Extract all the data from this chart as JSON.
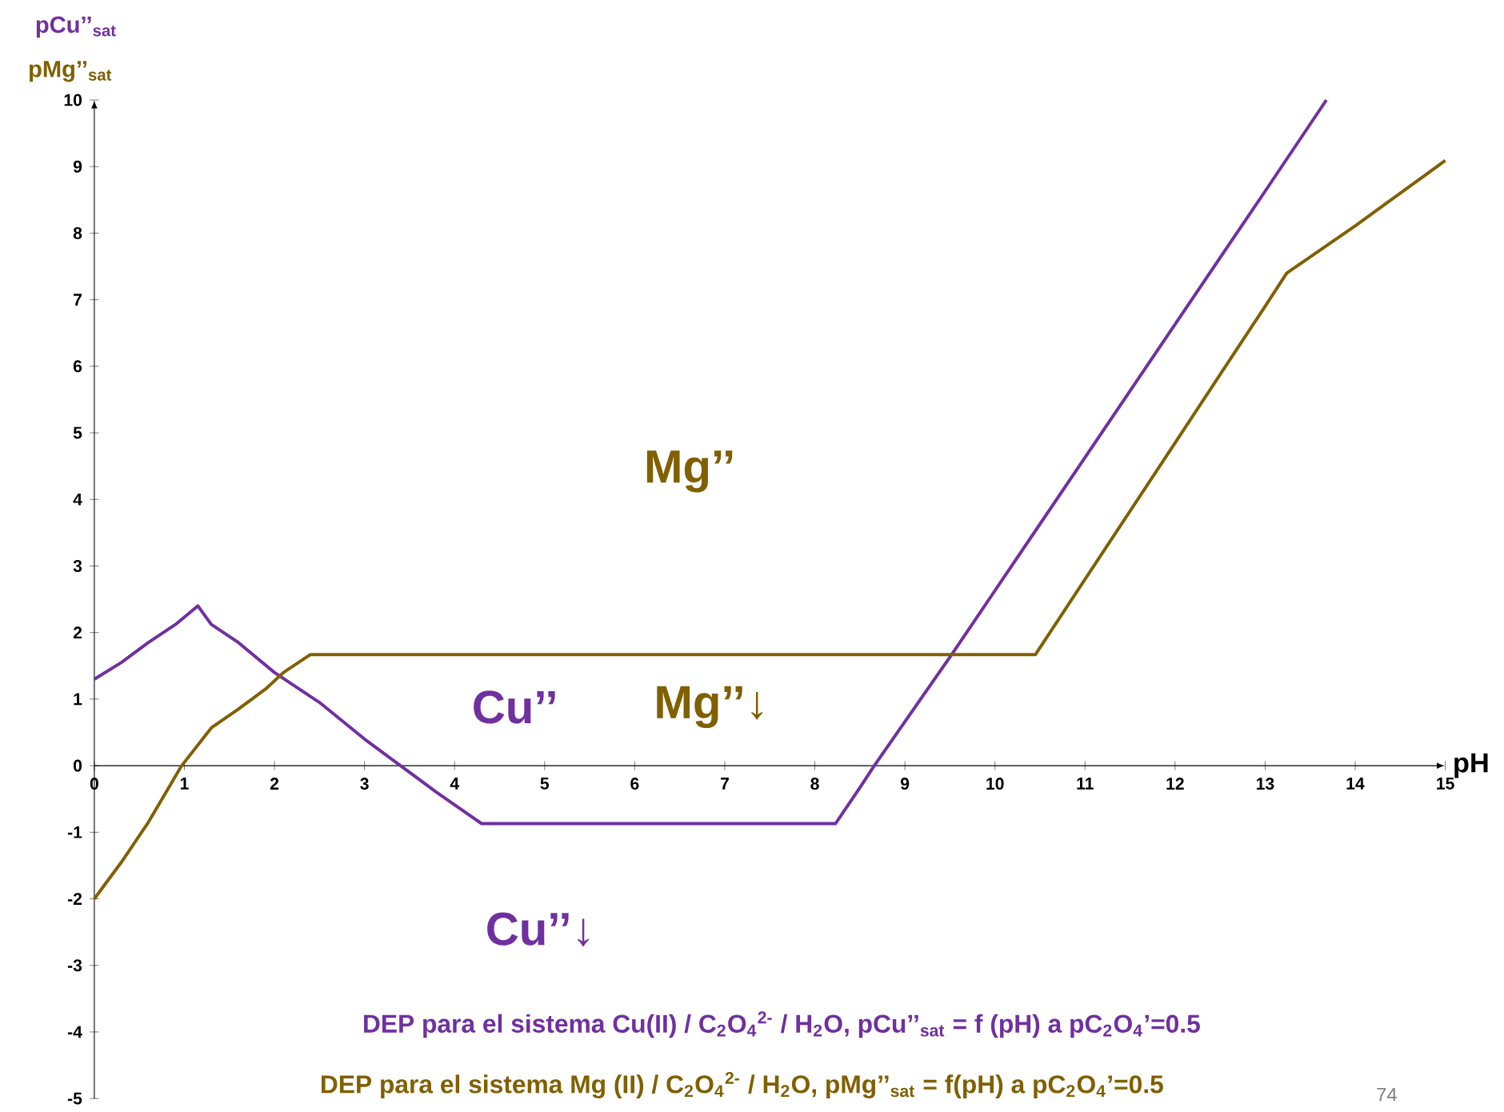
{
  "chart_data": {
    "type": "line",
    "xlabel": "pH",
    "ylabel": "pCu’’$_{sat}$",
    "xlim": [
      0,
      15
    ],
    "ylim": [
      -5,
      10
    ],
    "xticks": [
      0,
      1,
      2,
      3,
      4,
      5,
      6,
      7,
      8,
      9,
      10,
      11,
      12,
      13,
      14,
      15
    ],
    "yticks": [
      -5,
      -4,
      -3,
      -2,
      -1,
      0,
      1,
      2,
      3,
      4,
      5,
      6,
      7,
      8,
      9,
      10
    ],
    "line_style": "solid",
    "series": [
      {
        "color": "#7030a0",
        "x": [
          0,
          0.3,
          0.6,
          0.9,
          1.15,
          1.3,
          1.6,
          2,
          2.5,
          3,
          3.4,
          3.8,
          4.3,
          8.23,
          8.5,
          8.66,
          9,
          9.52,
          10,
          10.5,
          11,
          11.5,
          12,
          12.5,
          13,
          13.68
        ],
        "values": [
          1.3,
          1.55,
          1.85,
          2.12,
          2.4,
          2.12,
          1.85,
          1.4,
          0.95,
          0.4,
          0,
          -0.4,
          -0.87,
          -0.87,
          -0.33,
          0,
          0.66,
          1.67,
          2.63,
          3.63,
          4.63,
          5.63,
          6.63,
          7.63,
          8.63,
          10
        ]
      },
      {
        "color": "#806000",
        "x": [
          0,
          0.3,
          0.6,
          0.97,
          1.3,
          1.6,
          1.9,
          2.1,
          2.4,
          10.45,
          11,
          12,
          13,
          13.24,
          14,
          15
        ],
        "values": [
          -2,
          -1.45,
          -0.85,
          0,
          0.57,
          0.85,
          1.15,
          1.4,
          1.67,
          1.67,
          2.8,
          4.85,
          6.9,
          7.4,
          8.11,
          9.09
        ]
      }
    ],
    "annotations": [
      "pMg’’$_{sat}$",
      "Mg’’",
      "Cu’’",
      "Mg’’↓",
      "Cu’’↓",
      "DEP para el sistema Cu(II) / C$_{2}$O$_{4}$$^{2-}$ / H$_{2}$O, pCu’’$_{sat}$ = f (pH) a pC$_{2}$O$_{4}$’=0.5",
      "DEP para el sistema Mg (II) / C$_{2}$O$_{4}$$^{2-}$ / H$_{2}$O, pMg’’$_{sat}$ = f(pH) a pC$_{2}$O$_{4}$’=0.5",
      "74"
    ]
  }
}
